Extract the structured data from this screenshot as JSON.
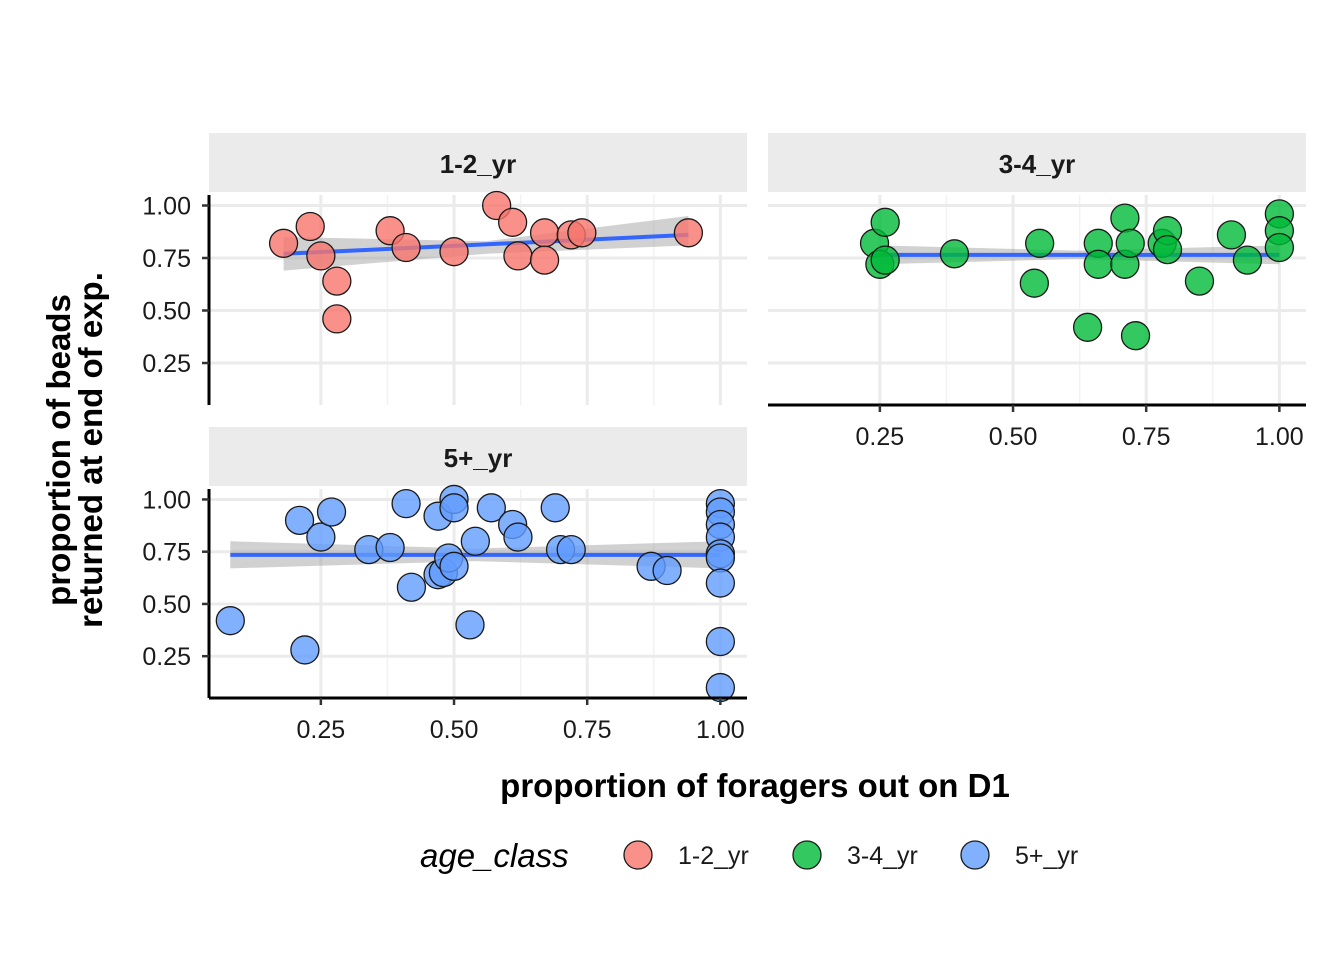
{
  "chart_data": {
    "type": "scatter",
    "xlabel": "proportion of foragers out on D1",
    "ylabel_lines": [
      "proportion of beads",
      "returned at end of exp."
    ],
    "x_ticks": [
      "0.25",
      "0.50",
      "0.75",
      "1.00"
    ],
    "y_ticks": [
      "0.25",
      "0.50",
      "0.75",
      "1.00"
    ],
    "xlim": [
      0.04,
      1.05
    ],
    "ylim": [
      0.05,
      1.05
    ],
    "grid": true,
    "legend": {
      "title": "age_class",
      "placement": "bottom",
      "entries": [
        {
          "label": "1-2_yr",
          "color": "#F8766D"
        },
        {
          "label": "3-4_yr",
          "color": "#00BA38"
        },
        {
          "label": "5+_yr",
          "color": "#619CFF"
        }
      ]
    },
    "smooth_color": "#3366FF",
    "band_color": "#999999",
    "panels": [
      {
        "strip": "1-2_yr",
        "color": "#F8766D",
        "points": [
          [
            0.18,
            0.82
          ],
          [
            0.23,
            0.9
          ],
          [
            0.25,
            0.76
          ],
          [
            0.28,
            0.64
          ],
          [
            0.28,
            0.46
          ],
          [
            0.38,
            0.88
          ],
          [
            0.41,
            0.8
          ],
          [
            0.5,
            0.78
          ],
          [
            0.58,
            1.0
          ],
          [
            0.61,
            0.92
          ],
          [
            0.62,
            0.76
          ],
          [
            0.67,
            0.87
          ],
          [
            0.67,
            0.74
          ],
          [
            0.72,
            0.86
          ],
          [
            0.74,
            0.87
          ],
          [
            0.94,
            0.87
          ]
        ],
        "fit": {
          "x": [
            0.18,
            0.94
          ],
          "y": [
            0.77,
            0.86
          ]
        },
        "band": {
          "x": [
            0.18,
            0.56,
            0.94
          ],
          "lower": [
            0.69,
            0.77,
            0.81
          ],
          "upper": [
            0.85,
            0.83,
            0.95
          ]
        }
      },
      {
        "strip": "3-4_yr",
        "color": "#00BA38",
        "points": [
          [
            0.24,
            0.82
          ],
          [
            0.25,
            0.72
          ],
          [
            0.26,
            0.92
          ],
          [
            0.26,
            0.74
          ],
          [
            0.39,
            0.77
          ],
          [
            0.54,
            0.63
          ],
          [
            0.55,
            0.82
          ],
          [
            0.64,
            0.42
          ],
          [
            0.66,
            0.82
          ],
          [
            0.66,
            0.72
          ],
          [
            0.71,
            0.94
          ],
          [
            0.71,
            0.72
          ],
          [
            0.72,
            0.82
          ],
          [
            0.73,
            0.38
          ],
          [
            0.78,
            0.82
          ],
          [
            0.79,
            0.88
          ],
          [
            0.79,
            0.79
          ],
          [
            0.85,
            0.64
          ],
          [
            0.91,
            0.86
          ],
          [
            0.94,
            0.74
          ],
          [
            1.0,
            0.96
          ],
          [
            1.0,
            0.88
          ],
          [
            1.0,
            0.8
          ]
        ],
        "fit": {
          "x": [
            0.25,
            1.0
          ],
          "y": [
            0.765,
            0.765
          ]
        },
        "band": {
          "x": [
            0.25,
            0.62,
            1.0
          ],
          "lower": [
            0.72,
            0.745,
            0.72
          ],
          "upper": [
            0.81,
            0.785,
            0.81
          ]
        }
      },
      {
        "strip": "5+_yr",
        "color": "#619CFF",
        "points": [
          [
            0.08,
            0.42
          ],
          [
            0.21,
            0.9
          ],
          [
            0.22,
            0.28
          ],
          [
            0.25,
            0.82
          ],
          [
            0.27,
            0.94
          ],
          [
            0.34,
            0.76
          ],
          [
            0.38,
            0.77
          ],
          [
            0.41,
            0.98
          ],
          [
            0.42,
            0.58
          ],
          [
            0.47,
            0.92
          ],
          [
            0.47,
            0.64
          ],
          [
            0.48,
            0.65
          ],
          [
            0.49,
            0.72
          ],
          [
            0.5,
            0.68
          ],
          [
            0.5,
            1.0
          ],
          [
            0.5,
            0.96
          ],
          [
            0.53,
            0.4
          ],
          [
            0.54,
            0.8
          ],
          [
            0.57,
            0.96
          ],
          [
            0.61,
            0.88
          ],
          [
            0.62,
            0.82
          ],
          [
            0.69,
            0.96
          ],
          [
            0.7,
            0.76
          ],
          [
            0.72,
            0.76
          ],
          [
            0.87,
            0.68
          ],
          [
            0.9,
            0.66
          ],
          [
            1.0,
            0.98
          ],
          [
            1.0,
            0.94
          ],
          [
            1.0,
            0.88
          ],
          [
            1.0,
            0.82
          ],
          [
            1.0,
            0.74
          ],
          [
            1.0,
            0.72
          ],
          [
            1.0,
            0.6
          ],
          [
            1.0,
            0.32
          ],
          [
            1.0,
            0.1
          ]
        ],
        "fit": {
          "x": [
            0.08,
            1.0
          ],
          "y": [
            0.735,
            0.735
          ]
        },
        "band": {
          "x": [
            0.08,
            0.54,
            1.0
          ],
          "lower": [
            0.67,
            0.705,
            0.67
          ],
          "upper": [
            0.8,
            0.765,
            0.8
          ]
        }
      }
    ]
  }
}
